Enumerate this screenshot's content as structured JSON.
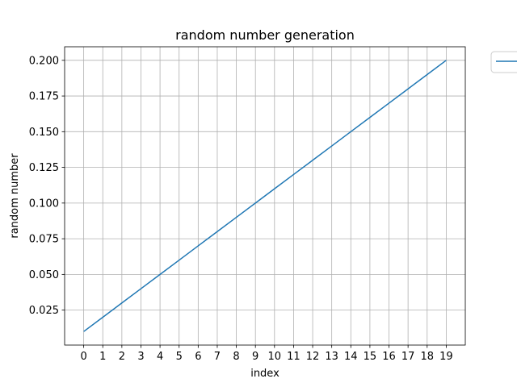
{
  "chart_data": {
    "type": "line",
    "title": "random number generation",
    "xlabel": "index",
    "ylabel": "random number",
    "x": [
      0,
      1,
      2,
      3,
      4,
      5,
      6,
      7,
      8,
      9,
      10,
      11,
      12,
      13,
      14,
      15,
      16,
      17,
      18,
      19
    ],
    "x_ticks": [
      "0",
      "1",
      "2",
      "3",
      "4",
      "5",
      "6",
      "7",
      "8",
      "9",
      "10",
      "11",
      "12",
      "13",
      "14",
      "15",
      "16",
      "17",
      "18",
      "19"
    ],
    "y_ticks": [
      "0.025",
      "0.050",
      "0.075",
      "0.100",
      "0.125",
      "0.150",
      "0.175",
      "0.200"
    ],
    "xlim": [
      -1,
      20
    ],
    "ylim": [
      0.0005,
      0.2095
    ],
    "grid": true,
    "legend": "outside-top-right",
    "series": [
      {
        "values": [
          0.01,
          0.02,
          0.03,
          0.04,
          0.05,
          0.06,
          0.07,
          0.08,
          0.09,
          0.1,
          0.11,
          0.12,
          0.13,
          0.14,
          0.15,
          0.16,
          0.17,
          0.18,
          0.19,
          0.2
        ],
        "color": "#1f77b4"
      }
    ],
    "colors": {
      "line": "#1f77b4",
      "grid": "#b0b0b0",
      "axis": "#000000",
      "legend_border": "#cccccc"
    }
  }
}
